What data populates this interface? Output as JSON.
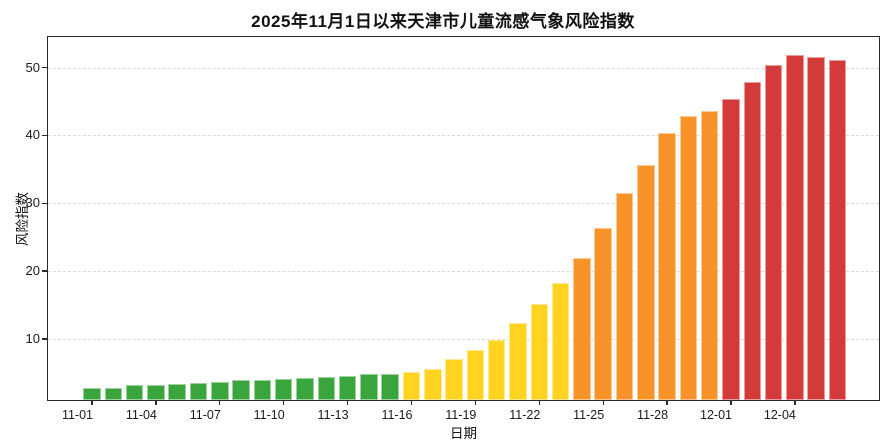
{
  "chart_data": {
    "type": "bar",
    "title": "2025年11月1日以来天津市儿童流感气象风险指数",
    "xlabel": "日期",
    "ylabel": "风险指数",
    "ylim": [
      1.0,
      54.5
    ],
    "yticks": [
      10,
      20,
      30,
      40,
      50
    ],
    "grid": "horizontal-dashed",
    "legend": "none",
    "x_tick_every": 3,
    "level_colors": {
      "green": "#3aa53d",
      "yellow": "#ffd320",
      "orange": "#f79329",
      "red": "#d33b3b"
    },
    "points": [
      {
        "date": "11-01",
        "value": 2.7,
        "level": "green"
      },
      {
        "date": "11-02",
        "value": 2.8,
        "level": "green"
      },
      {
        "date": "11-03",
        "value": 3.2,
        "level": "green"
      },
      {
        "date": "11-04",
        "value": 3.2,
        "level": "green"
      },
      {
        "date": "11-05",
        "value": 3.4,
        "level": "green"
      },
      {
        "date": "11-06",
        "value": 3.5,
        "level": "green"
      },
      {
        "date": "11-07",
        "value": 3.7,
        "level": "green"
      },
      {
        "date": "11-08",
        "value": 3.9,
        "level": "green"
      },
      {
        "date": "11-09",
        "value": 4.0,
        "level": "green"
      },
      {
        "date": "11-10",
        "value": 4.1,
        "level": "green"
      },
      {
        "date": "11-11",
        "value": 4.2,
        "level": "green"
      },
      {
        "date": "11-12",
        "value": 4.4,
        "level": "green"
      },
      {
        "date": "11-13",
        "value": 4.5,
        "level": "green"
      },
      {
        "date": "11-14",
        "value": 4.8,
        "level": "green"
      },
      {
        "date": "11-15",
        "value": 4.9,
        "level": "green"
      },
      {
        "date": "11-16",
        "value": 5.1,
        "level": "yellow"
      },
      {
        "date": "11-17",
        "value": 5.6,
        "level": "yellow"
      },
      {
        "date": "11-18",
        "value": 7.0,
        "level": "yellow"
      },
      {
        "date": "11-19",
        "value": 8.3,
        "level": "yellow"
      },
      {
        "date": "11-20",
        "value": 9.8,
        "level": "yellow"
      },
      {
        "date": "11-21",
        "value": 12.4,
        "level": "yellow"
      },
      {
        "date": "11-22",
        "value": 15.1,
        "level": "yellow"
      },
      {
        "date": "11-23",
        "value": 18.2,
        "level": "yellow"
      },
      {
        "date": "11-24",
        "value": 22.0,
        "level": "orange"
      },
      {
        "date": "11-25",
        "value": 26.4,
        "level": "orange"
      },
      {
        "date": "11-26",
        "value": 31.5,
        "level": "orange"
      },
      {
        "date": "11-27",
        "value": 35.6,
        "level": "orange"
      },
      {
        "date": "11-28",
        "value": 40.3,
        "level": "orange"
      },
      {
        "date": "11-29",
        "value": 42.8,
        "level": "orange"
      },
      {
        "date": "11-30",
        "value": 43.6,
        "level": "orange"
      },
      {
        "date": "12-01",
        "value": 45.4,
        "level": "red"
      },
      {
        "date": "12-02",
        "value": 47.8,
        "level": "red"
      },
      {
        "date": "12-03",
        "value": 50.4,
        "level": "red"
      },
      {
        "date": "12-04",
        "value": 51.9,
        "level": "red"
      },
      {
        "date": "12-05",
        "value": 51.6,
        "level": "red"
      },
      {
        "date": "12-06",
        "value": 51.1,
        "level": "red"
      }
    ]
  }
}
